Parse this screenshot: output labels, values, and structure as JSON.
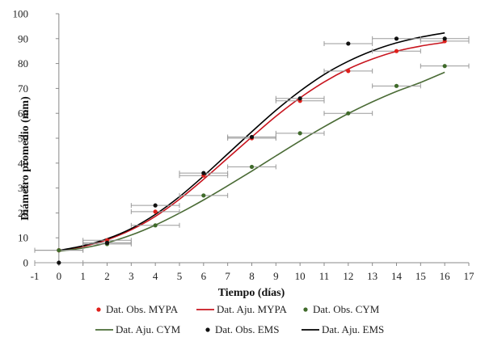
{
  "chart_data": {
    "type": "scatter",
    "title": "",
    "xlabel": "Tiempo (días)",
    "ylabel": "Diámetro promedio (mm)",
    "xlim": [
      -1,
      17
    ],
    "ylim": [
      0,
      100
    ],
    "xticks": [
      -1,
      0,
      1,
      2,
      3,
      4,
      5,
      6,
      7,
      8,
      9,
      10,
      11,
      12,
      13,
      14,
      15,
      16,
      17
    ],
    "yticks": [
      0,
      10,
      20,
      30,
      40,
      50,
      60,
      70,
      80,
      90,
      100
    ],
    "grid": false,
    "legend_position": "bottom",
    "series": [
      {
        "name": "Dat. Obs. MYPA",
        "kind": "points",
        "color": "#e0201b",
        "x": [
          0,
          2,
          4,
          6,
          8,
          10,
          12,
          14,
          16
        ],
        "y": [
          5,
          9,
          20.5,
          35,
          50,
          65,
          77,
          85,
          89
        ],
        "xerr": [
          1,
          1,
          1,
          1,
          1,
          1,
          1,
          1,
          1
        ]
      },
      {
        "name": "Dat. Aju. MYPA",
        "kind": "line",
        "color": "#c8141e",
        "x": [
          0,
          1,
          2,
          3,
          4,
          5,
          6,
          7,
          8,
          9,
          10,
          11,
          12,
          13,
          14,
          15,
          16
        ],
        "y": [
          4.8,
          6.5,
          9.2,
          13.2,
          18.6,
          25.5,
          33.5,
          42.0,
          50.5,
          58.8,
          66.2,
          72.6,
          77.8,
          81.8,
          84.9,
          87.0,
          88.5
        ]
      },
      {
        "name": "Dat. Obs. CYM",
        "kind": "points",
        "color": "#3f6a2a",
        "x": [
          0,
          2,
          4,
          6,
          8,
          10,
          12,
          14,
          16
        ],
        "y": [
          5,
          7.5,
          15,
          27,
          38.5,
          52,
          60,
          71,
          79
        ],
        "xerr": [
          1,
          1,
          1,
          1,
          1,
          1,
          1,
          1,
          1
        ]
      },
      {
        "name": "Dat. Aju. CYM",
        "kind": "line",
        "color": "#4a6b35",
        "x": [
          0,
          1,
          2,
          3,
          4,
          5,
          6,
          7,
          8,
          9,
          10,
          11,
          12,
          13,
          14,
          15,
          16
        ],
        "y": [
          4.6,
          5.9,
          8.0,
          11.1,
          15.1,
          19.9,
          25.2,
          30.9,
          36.8,
          42.9,
          48.9,
          54.6,
          59.9,
          64.6,
          68.8,
          72.4,
          76.5
        ]
      },
      {
        "name": "Dat. Obs. EMS",
        "kind": "points",
        "color": "#111111",
        "x": [
          0,
          2,
          4,
          6,
          8,
          10,
          12,
          14,
          16
        ],
        "y": [
          0,
          8,
          23,
          36,
          50.5,
          66,
          88,
          90,
          90
        ],
        "xerr": [
          1,
          1,
          1,
          1,
          1,
          1,
          1,
          1,
          1
        ]
      },
      {
        "name": "Dat. Aju. EMS",
        "kind": "line",
        "color": "#000000",
        "x": [
          0,
          1,
          2,
          3,
          4,
          5,
          6,
          7,
          8,
          9,
          10,
          11,
          12,
          13,
          14,
          15,
          16
        ],
        "y": [
          4.9,
          6.8,
          9.6,
          13.7,
          19.4,
          26.5,
          34.8,
          43.7,
          52.6,
          61.2,
          68.9,
          75.6,
          80.9,
          85.1,
          88.3,
          90.6,
          92.3
        ]
      }
    ]
  }
}
